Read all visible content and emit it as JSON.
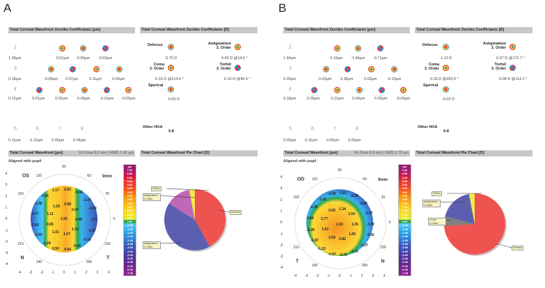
{
  "panels": [
    {
      "letter": "A",
      "eye": "OS",
      "left_dir": "N",
      "right_dir": "T",
      "zernike_um": {
        "title": "Total Corneal Wavefront Zernike Coefficiants [µm]",
        "rows": [
          {
            "order": "2",
            "total": "1.39µm",
            "values": [
              "-0.51µm",
              "-0.90µm",
              "-0.93µm"
            ]
          },
          {
            "order": "3",
            "total": "0.18µm",
            "values": [
              "-0.08µm",
              "0.07µm",
              "0.11µm",
              "0.09µm"
            ]
          },
          {
            "order": "4",
            "total": "0.12µm",
            "values": [
              "0.01µm",
              "0.02µm",
              "0.06µm",
              "-0.10µm",
              "-0.02µm"
            ]
          }
        ],
        "higher": [
          {
            "order": "5",
            "value": "0.11µm"
          },
          {
            "order": "6",
            "value": "0.12µm"
          },
          {
            "order": "7",
            "value": "0.06µm"
          },
          {
            "order": "8",
            "value": "0.04µm"
          }
        ]
      },
      "zernike_d": {
        "title": "Total Corneal Wavefront Zernike Coefficiants [D]",
        "defocus": {
          "label": "Defocus",
          "value": "0.70 D"
        },
        "astig": {
          "label1": "Astigmatism",
          "label2": "2. Order",
          "value": "0.82 D @14.5 °"
        },
        "coma": {
          "label1": "Coma",
          "label2": "3. Order",
          "value": "0.10 D @214.6 °"
        },
        "trefoil": {
          "label1": "Trefoil",
          "label2": "3. Order",
          "value": "0.10 D @45.5 °"
        },
        "spherical": {
          "label": "Sperical",
          "value": "-0.05 D"
        },
        "other": {
          "label": "Other HOA",
          "range": "5-8"
        }
      },
      "wavefront": {
        "title": "Total Corneal Wavefront [µm]",
        "fit": "Fit Zone 6.0 mm | RMS 1.42 µm",
        "aligned": "Aligned with pupil",
        "zone": "9mm",
        "values": [
          "1.17",
          "0.93",
          "-0.48",
          "0.96",
          "-2.37",
          "-1.36",
          "1.18",
          "0.98",
          "-2.99",
          "0.47",
          "-2.77",
          "1.11",
          "1.65",
          "0.48",
          "-2.3",
          "-2.60",
          "-0.65",
          "1.33",
          "-1.57",
          "1.01",
          "1.57",
          "-2.60",
          "-0.15",
          "-1.24",
          "0.83",
          "0.50",
          "0.64"
        ]
      },
      "pie": {
        "title": "Total Corneal Wavefront Pie Chart [D]",
        "slices": [
          {
            "label": "Defocus",
            "fraction": 0.42,
            "color": "#ef5350"
          },
          {
            "label": "Astigmatism 2.Order",
            "fraction": 0.42,
            "color": "#5c5fb0"
          },
          {
            "label": "Astigmatism 2.Order",
            "fraction": 0.13,
            "color": "#c068b8"
          },
          {
            "label": "Others",
            "fraction": 0.03,
            "color": "#f4e84a"
          }
        ]
      }
    },
    {
      "letter": "B",
      "eye": "OD",
      "left_dir": "T",
      "right_dir": "N",
      "zernike_um": {
        "title": "Total Corneal Wavefront Zernike Coefficiants [µm]",
        "rows": [
          {
            "order": "2",
            "total": "1.64µm",
            "values": [
              "0.19µm",
              "-1.46µm",
              "-0.71µm"
            ]
          },
          {
            "order": "3",
            "total": "0.39µm",
            "values": [
              "0.03µm",
              "0.38µm",
              "0.03µm",
              "-0.10µm"
            ]
          },
          {
            "order": "4",
            "total": "0.18µm",
            "values": [
              "0.09µm",
              "-0.11µm",
              "0.04µm",
              "0.09µm",
              "-0.04µm"
            ]
          }
        ],
        "higher": [
          {
            "order": "5",
            "value": "0.09µm"
          },
          {
            "order": "6",
            "value": "0.11µm"
          },
          {
            "order": "7",
            "value": "0.04µm"
          },
          {
            "order": "8",
            "value": "0.03µm"
          }
        ]
      },
      "zernike_d": {
        "title": "Total Corneal Wavefront Zernike Coefficiants [D]",
        "defocus": {
          "label": "Defocus",
          "value": "1.13 D"
        },
        "astig": {
          "label1": "Astigmatism",
          "label2": "2. Order",
          "value": "0.57 D @172.7 °"
        },
        "coma": {
          "label1": "Coma",
          "label2": "3. Order",
          "value": "0.29 D @265.5 °"
        },
        "trefoil": {
          "label1": "Trefoil",
          "label2": "3. Order",
          "value": "0.08 D @114.1 °"
        },
        "spherical": {
          "label": "Sperical",
          "value": "-0.03 D"
        },
        "other": {
          "label": "Other HOA",
          "range": "5-8"
        }
      },
      "wavefront": {
        "title": "Total Corneal Wavefront [µm]",
        "fit": "Fit Zone 6.0 mm | RMS 1.70 µm",
        "aligned": "Aligned with pupil",
        "zone": "9mm",
        "values": [
          "-0.30",
          "0.21",
          "-0.28",
          "-1.10",
          "-0.89",
          "-2.26",
          "0.83",
          "1.34",
          "1.54",
          "-1.97",
          "-2.64",
          "0.77",
          "2.43",
          "1.05",
          "-3.38",
          "-2.28",
          "1.63",
          "1.69",
          "-3.42",
          "2.59",
          "2.82",
          "-1.87",
          "-2.07",
          "-1.15",
          "-0.97",
          "-0.70",
          "-1.23"
        ]
      },
      "pie": {
        "title": "Total Corneal Wavefront Pie Chart [D]",
        "slices": [
          {
            "label": "Defocus",
            "fraction": 0.74,
            "color": "#ef5350"
          },
          {
            "label": "Coma 3.Order",
            "fraction": 0.05,
            "color": "#808080"
          },
          {
            "label": "Astigmatism 2.Order",
            "fraction": 0.18,
            "color": "#5c5fb0"
          },
          {
            "label": "Others",
            "fraction": 0.03,
            "color": "#f4e84a"
          }
        ]
      }
    }
  ],
  "axes": {
    "y_ticks": [
      "4",
      "3",
      "2",
      "1",
      "0",
      "-1",
      "-2",
      "-3",
      "-4"
    ],
    "x_ticks": [
      "-4",
      "-3",
      "-2",
      "-1",
      "0",
      "1",
      "2",
      "3",
      "4"
    ],
    "angles": [
      "90",
      "120",
      "60",
      "150",
      "30",
      "0",
      "210",
      "330",
      "240",
      "300"
    ]
  },
  "scale": {
    "unit": "µm",
    "values": [
      "7.00",
      "6.50",
      "6.00",
      "5.50",
      "5.00",
      "4.50",
      "4.00",
      "3.50",
      "3.00",
      "2.50",
      "2.00",
      "1.50",
      "1.00",
      "0.50",
      "0.00",
      "-0.50",
      "-1.00",
      "-1.50",
      "-2.00",
      "-2.50",
      "-3.00",
      "-3.50",
      "-4.00",
      "-4.50",
      "-5.00",
      "-5.50",
      "-6.00",
      "-6.50",
      "-7.00"
    ],
    "colors": [
      "#9c1c6e",
      "#c2185b",
      "#d81b3a",
      "#e53935",
      "#ef3b2c",
      "#f4511e",
      "#f86c16",
      "#fb8c00",
      "#fba11a",
      "#fdb515",
      "#fdc90c",
      "#fdd835",
      "#f5e31a",
      "#e8e82a",
      "#2fa84f",
      "#4fc3f7",
      "#39b3ef",
      "#29a3e6",
      "#2b8fde",
      "#3079d2",
      "#3866c6",
      "#3c54ba",
      "#4245ad",
      "#4a3aa4",
      "#55309b",
      "#602993",
      "#6d2490",
      "#7a238f",
      "#8a228e"
    ]
  }
}
